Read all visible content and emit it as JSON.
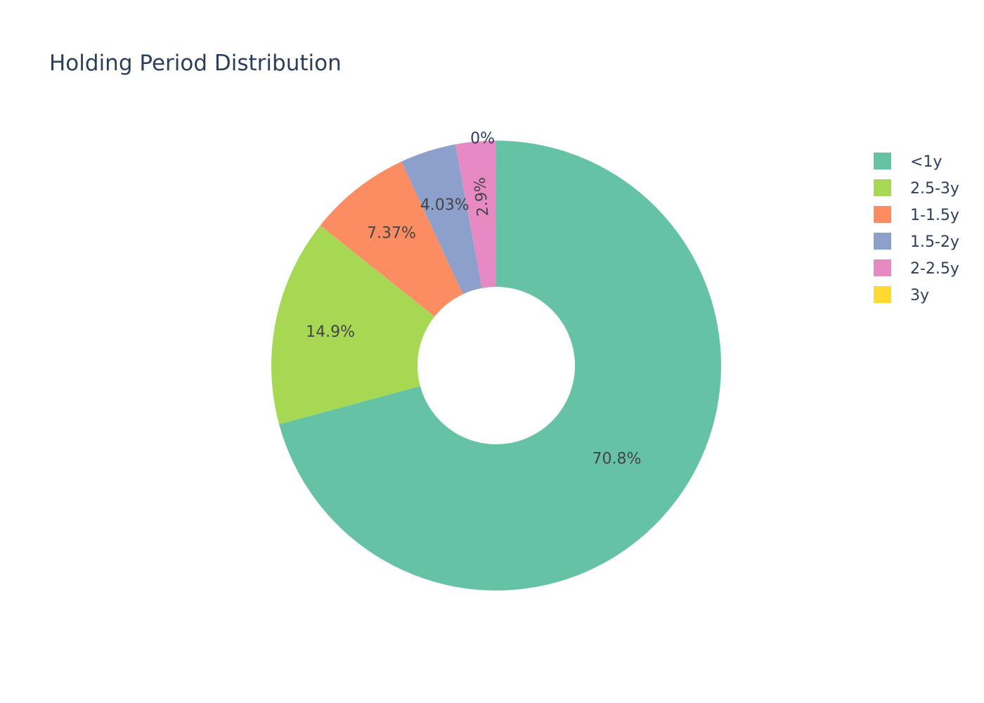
{
  "chart_data": {
    "type": "pie",
    "title": "Holding Period Distribution",
    "hole": 0.35,
    "sort": "descending",
    "direction": "clockwise",
    "legend_position": "top-right",
    "labels": [
      "<1y",
      "2.5-3y",
      "1-1.5y",
      "1.5-2y",
      "2-2.5y",
      "3y"
    ],
    "values": [
      70.8,
      14.9,
      7.37,
      4.03,
      2.9,
      0
    ],
    "value_labels": [
      "70.8%",
      "14.9%",
      "7.37%",
      "4.03%",
      "2.9%",
      "0%"
    ],
    "colors": [
      "#66c2a5",
      "#a6d854",
      "#fc8d62",
      "#8da0cb",
      "#e78ac3",
      "#ffd92f"
    ]
  }
}
